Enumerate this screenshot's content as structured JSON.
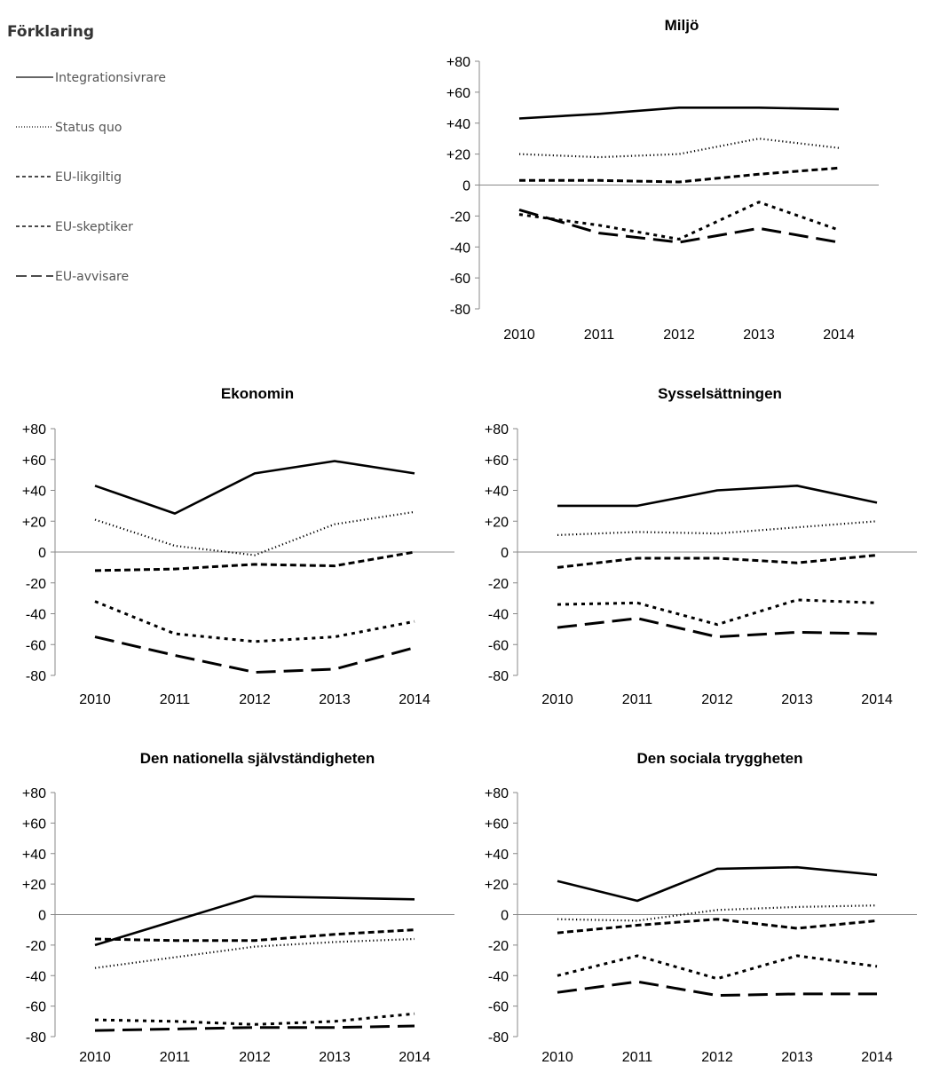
{
  "legend": {
    "title": "Förklaring",
    "items": [
      {
        "name": "Integrationsivrare",
        "style": "solid"
      },
      {
        "name": "Status quo",
        "style": "fine-dotted"
      },
      {
        "name": "EU-likgiltig",
        "style": "dashed"
      },
      {
        "name": "EU-skeptiker",
        "style": "dotted"
      },
      {
        "name": "EU-avvisare",
        "style": "long-dash"
      }
    ]
  },
  "chart_data": [
    {
      "type": "line",
      "title": "Miljö",
      "x": [
        "2010",
        "2011",
        "2012",
        "2013",
        "2014"
      ],
      "ylim": [
        -80,
        80
      ],
      "yticks": [
        "+80",
        "+60",
        "+40",
        "+20",
        "0",
        "-20",
        "-40",
        "-60",
        "-80"
      ],
      "series": [
        {
          "name": "Integrationsivrare",
          "values": [
            43,
            46,
            50,
            50,
            49
          ]
        },
        {
          "name": "Status quo",
          "values": [
            20,
            18,
            20,
            30,
            24
          ]
        },
        {
          "name": "EU-likgiltig",
          "values": [
            3,
            3,
            2,
            7,
            11
          ]
        },
        {
          "name": "EU-skeptiker",
          "values": [
            -19,
            -26,
            -35,
            -11,
            -29
          ]
        },
        {
          "name": "EU-avvisare",
          "values": [
            -16,
            -31,
            -37,
            -28,
            -37
          ]
        }
      ]
    },
    {
      "type": "line",
      "title": "Ekonomin",
      "x": [
        "2010",
        "2011",
        "2012",
        "2013",
        "2014"
      ],
      "ylim": [
        -80,
        80
      ],
      "yticks": [
        "+80",
        "+60",
        "+40",
        "+20",
        "0",
        "-20",
        "-40",
        "-60",
        "-80"
      ],
      "series": [
        {
          "name": "Integrationsivrare",
          "values": [
            43,
            25,
            51,
            59,
            51
          ]
        },
        {
          "name": "Status quo",
          "values": [
            21,
            4,
            -2,
            18,
            26
          ]
        },
        {
          "name": "EU-likgiltig",
          "values": [
            -12,
            -11,
            -8,
            -9,
            0
          ]
        },
        {
          "name": "EU-skeptiker",
          "values": [
            -32,
            -53,
            -58,
            -55,
            -45
          ]
        },
        {
          "name": "EU-avvisare",
          "values": [
            -55,
            -67,
            -78,
            -76,
            -62
          ]
        }
      ]
    },
    {
      "type": "line",
      "title": "Sysselsättningen",
      "x": [
        "2010",
        "2011",
        "2012",
        "2013",
        "2014"
      ],
      "ylim": [
        -80,
        80
      ],
      "yticks": [
        "+80",
        "+60",
        "+40",
        "+20",
        "0",
        "-20",
        "-40",
        "-60",
        "-80"
      ],
      "series": [
        {
          "name": "Integrationsivrare",
          "values": [
            30,
            30,
            40,
            43,
            32
          ]
        },
        {
          "name": "Status quo",
          "values": [
            11,
            13,
            12,
            16,
            20
          ]
        },
        {
          "name": "EU-likgiltig",
          "values": [
            -10,
            -4,
            -4,
            -7,
            -2
          ]
        },
        {
          "name": "EU-skeptiker",
          "values": [
            -34,
            -33,
            -47,
            -31,
            -33
          ]
        },
        {
          "name": "EU-avvisare",
          "values": [
            -49,
            -43,
            -55,
            -52,
            -53
          ]
        }
      ]
    },
    {
      "type": "line",
      "title": "Den nationella självständigheten",
      "x": [
        "2010",
        "2011",
        "2012",
        "2013",
        "2014"
      ],
      "ylim": [
        -80,
        80
      ],
      "yticks": [
        "+80",
        "+60",
        "+40",
        "+20",
        "0",
        "-20",
        "-40",
        "-60",
        "-80"
      ],
      "series": [
        {
          "name": "Integrationsivrare",
          "values": [
            -20,
            -4,
            12,
            11,
            10
          ]
        },
        {
          "name": "Status quo",
          "values": [
            -35,
            -28,
            -21,
            -18,
            -16
          ]
        },
        {
          "name": "EU-likgiltig",
          "values": [
            -16,
            -17,
            -17,
            -13,
            -10
          ]
        },
        {
          "name": "EU-skeptiker",
          "values": [
            -69,
            -70,
            -72,
            -70,
            -65
          ]
        },
        {
          "name": "EU-avvisare",
          "values": [
            -76,
            -75,
            -74,
            -74,
            -73
          ]
        }
      ]
    },
    {
      "type": "line",
      "title": "Den sociala tryggheten",
      "x": [
        "2010",
        "2011",
        "2012",
        "2013",
        "2014"
      ],
      "ylim": [
        -80,
        80
      ],
      "yticks": [
        "+80",
        "+60",
        "+40",
        "+20",
        "0",
        "-20",
        "-40",
        "-60",
        "-80"
      ],
      "series": [
        {
          "name": "Integrationsivrare",
          "values": [
            22,
            9,
            30,
            31,
            26
          ]
        },
        {
          "name": "Status quo",
          "values": [
            -3,
            -4,
            3,
            5,
            6
          ]
        },
        {
          "name": "EU-likgiltig",
          "values": [
            -12,
            -7,
            -3,
            -9,
            -4
          ]
        },
        {
          "name": "EU-skeptiker",
          "values": [
            -40,
            -27,
            -42,
            -27,
            -34
          ]
        },
        {
          "name": "EU-avvisare",
          "values": [
            -51,
            -44,
            -53,
            -52,
            -52
          ]
        }
      ]
    }
  ]
}
